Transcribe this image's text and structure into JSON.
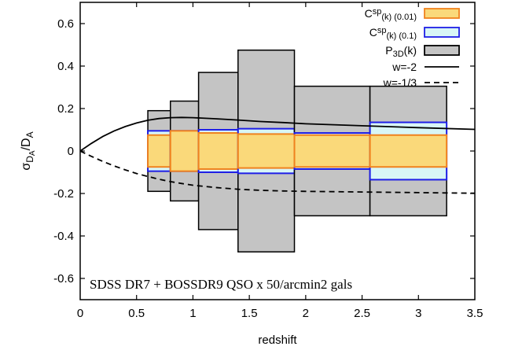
{
  "chart_data": {
    "type": "bar",
    "xlabel": "redshift",
    "ylabel": "σ_{D_A}/D_A",
    "xlim": [
      0,
      3.5
    ],
    "ylim": [
      -0.7,
      0.7
    ],
    "x_ticks": [
      0,
      0.5,
      1,
      1.5,
      2,
      2.5,
      3,
      3.5
    ],
    "x_tick_labels": [
      "0",
      "0.5",
      "1",
      "1.5",
      "2",
      "2.5",
      "3",
      "3.5"
    ],
    "y_ticks": [
      -0.6,
      -0.4,
      -0.2,
      0,
      0.2,
      0.4,
      0.6
    ],
    "y_tick_labels": [
      "-0.6",
      "-0.4",
      "-0.2",
      "0",
      "0.2",
      "0.4",
      "0.6"
    ],
    "grid": false,
    "legend_position": "top-right",
    "legend": [
      {
        "label": "C^{sp}_{(k) (0.01)}",
        "swatch": "box",
        "fill": "#fad97a",
        "stroke": "#f0821e"
      },
      {
        "label": "C^{sp}_{(k) (0.1)}",
        "swatch": "box",
        "fill": "#d8f6f6",
        "stroke": "#1e1ee6"
      },
      {
        "label": "P_{3D}(k)",
        "swatch": "box",
        "fill": "#c4c4c4",
        "stroke": "#000000"
      },
      {
        "label": "w=-2",
        "swatch": "solid-line",
        "stroke": "#000000"
      },
      {
        "label": "w=-1/3",
        "swatch": "dashed-line",
        "stroke": "#000000"
      }
    ],
    "bins": [
      {
        "x0": 0.6,
        "x1": 0.8,
        "p3d": 0.19,
        "csp_0_1": 0.095,
        "csp_0_01": 0.075
      },
      {
        "x0": 0.8,
        "x1": 1.05,
        "p3d": 0.235,
        "csp_0_1": 0.095,
        "csp_0_01": 0.095
      },
      {
        "x0": 1.05,
        "x1": 1.4,
        "p3d": 0.37,
        "csp_0_1": 0.1,
        "csp_0_01": 0.085
      },
      {
        "x0": 1.4,
        "x1": 1.9,
        "p3d": 0.475,
        "csp_0_1": 0.105,
        "csp_0_01": 0.08
      },
      {
        "x0": 1.9,
        "x1": 2.57,
        "p3d": 0.305,
        "csp_0_1": 0.085,
        "csp_0_01": 0.075
      },
      {
        "x0": 2.57,
        "x1": 3.25,
        "p3d": 0.305,
        "csp_0_1": 0.135,
        "csp_0_01": 0.075
      }
    ],
    "series": [
      {
        "name": "w=-2",
        "style": "solid",
        "x": [
          0.0,
          0.1,
          0.2,
          0.3,
          0.4,
          0.5,
          0.6,
          0.7,
          0.8,
          0.9,
          1.0,
          1.2,
          1.4,
          1.6,
          1.8,
          2.0,
          2.5,
          3.0,
          3.5
        ],
        "y": [
          0.0,
          0.036,
          0.068,
          0.094,
          0.115,
          0.132,
          0.145,
          0.153,
          0.157,
          0.158,
          0.157,
          0.152,
          0.146,
          0.139,
          0.134,
          0.128,
          0.119,
          0.11,
          0.102
        ]
      },
      {
        "name": "w=-1/3",
        "style": "dashed",
        "x": [
          0.0,
          0.1,
          0.2,
          0.3,
          0.4,
          0.5,
          0.6,
          0.7,
          0.8,
          0.9,
          1.0,
          1.2,
          1.4,
          1.6,
          1.8,
          2.0,
          2.5,
          3.0,
          3.5
        ],
        "y": [
          0.0,
          -0.025,
          -0.049,
          -0.07,
          -0.089,
          -0.106,
          -0.12,
          -0.133,
          -0.144,
          -0.153,
          -0.161,
          -0.172,
          -0.18,
          -0.185,
          -0.188,
          -0.19,
          -0.193,
          -0.196,
          -0.199
        ]
      }
    ],
    "annotation": "SDSS DR7 + BOSSDR9 QSO x 50/arcmin^2 gals"
  }
}
